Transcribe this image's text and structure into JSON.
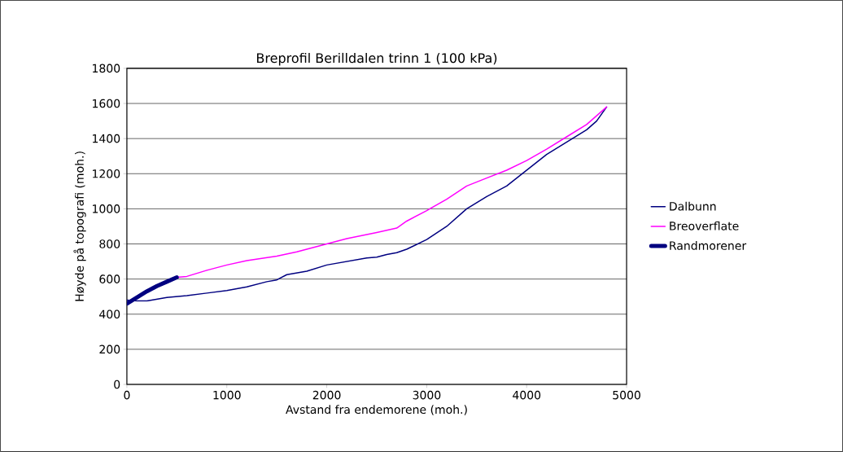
{
  "chart_data": {
    "type": "line",
    "title": "Breprofil Berilldalen trinn 1 (100 kPa)",
    "xlabel": "Avstand fra endemorene (moh.)",
    "ylabel": "Høyde  på topografi (moh.)",
    "xlim": [
      0,
      5000
    ],
    "xticks": [
      0,
      1000,
      2000,
      3000,
      4000,
      5000
    ],
    "ylim": [
      0,
      1800
    ],
    "yticks": [
      0,
      200,
      400,
      600,
      800,
      1000,
      1200,
      1400,
      1600,
      1800
    ],
    "grid": "y",
    "legend": "right",
    "marker": "none",
    "line_style": "solid",
    "series": [
      {
        "name": "Dalbunn",
        "color": "#000080",
        "x": [
          0,
          100,
          200,
          400,
          600,
          800,
          1000,
          1200,
          1400,
          1500,
          1600,
          1800,
          2000,
          2200,
          2400,
          2500,
          2600,
          2700,
          2800,
          3000,
          3200,
          3400,
          3600,
          3800,
          4000,
          4200,
          4400,
          4600,
          4700,
          4800
        ],
        "values": [
          480,
          475,
          475,
          495,
          505,
          520,
          535,
          555,
          585,
          595,
          625,
          645,
          680,
          700,
          720,
          725,
          740,
          750,
          770,
          825,
          900,
          1000,
          1070,
          1130,
          1220,
          1310,
          1380,
          1450,
          1500,
          1580
        ]
      },
      {
        "name": "Breoverflate",
        "color": "#ff00ff",
        "x": [
          500,
          600,
          800,
          1000,
          1200,
          1500,
          1700,
          2000,
          2200,
          2500,
          2700,
          2800,
          3000,
          3200,
          3400,
          3600,
          3800,
          4000,
          4200,
          4400,
          4600,
          4800
        ],
        "values": [
          610,
          615,
          650,
          680,
          705,
          730,
          755,
          800,
          830,
          865,
          890,
          930,
          990,
          1055,
          1130,
          1175,
          1220,
          1275,
          1340,
          1410,
          1480,
          1580
        ]
      },
      {
        "name": "Randmorener",
        "color": "#000080",
        "x": [
          0,
          100,
          200,
          300,
          400,
          500
        ],
        "values": [
          460,
          495,
          530,
          560,
          585,
          610
        ]
      }
    ]
  }
}
